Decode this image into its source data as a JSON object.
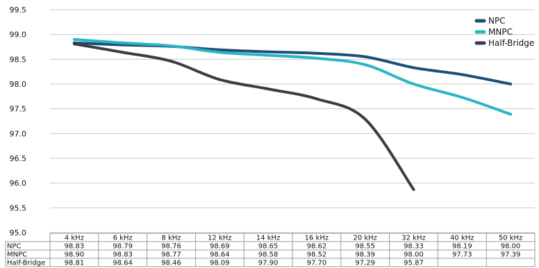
{
  "chart_data": {
    "type": "line",
    "title": "",
    "categories": [
      "4 kHz",
      "6 kHz",
      "8 kHz",
      "12 kHz",
      "14 kHz",
      "16 kHz",
      "20 kHz",
      "32 kHz",
      "40 kHz",
      "50 kHz"
    ],
    "ylim": [
      95.0,
      99.5
    ],
    "yticks": [
      "95.0",
      "95.5",
      "96.0",
      "96.5",
      "97.0",
      "97.5",
      "98.0",
      "98.5",
      "99.0",
      "99.5"
    ],
    "grid": true,
    "legend_position": "top-right",
    "series": [
      {
        "name": "NPC",
        "color": "#1f4e79",
        "values": [
          98.83,
          98.79,
          98.76,
          98.69,
          98.65,
          98.62,
          98.55,
          98.33,
          98.19,
          98.0
        ],
        "labels": [
          "98.83",
          "98.79",
          "98.76",
          "98.69",
          "98.65",
          "98.62",
          "98.55",
          "98.33",
          "98.19",
          "98.00"
        ]
      },
      {
        "name": "MNPC",
        "color": "#2bb5c3",
        "values": [
          98.9,
          98.83,
          98.77,
          98.64,
          98.58,
          98.52,
          98.39,
          98.0,
          97.73,
          97.39
        ],
        "labels": [
          "98.90",
          "98.83",
          "98.77",
          "98.64",
          "98.58",
          "98.52",
          "98.39",
          "98.00",
          "97.73",
          "97.39"
        ]
      },
      {
        "name": "Half-Bridge",
        "color": "#3a3d47",
        "values": [
          98.81,
          98.64,
          98.46,
          98.09,
          97.9,
          97.7,
          97.29,
          95.87,
          null,
          null
        ],
        "labels": [
          "98.81",
          "98.64",
          "98.46",
          "98.09",
          "97.90",
          "97.70",
          "97.29",
          "95.87",
          "",
          ""
        ]
      }
    ]
  }
}
